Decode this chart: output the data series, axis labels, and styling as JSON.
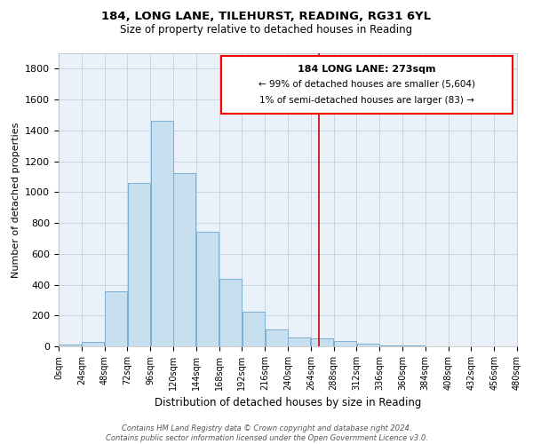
{
  "title": "184, LONG LANE, TILEHURST, READING, RG31 6YL",
  "subtitle": "Size of property relative to detached houses in Reading",
  "xlabel": "Distribution of detached houses by size in Reading",
  "ylabel": "Number of detached properties",
  "bar_color": "#c8dff0",
  "bar_edge_color": "#7bafd4",
  "background_color": "#ffffff",
  "ax_background_color": "#eaf1f8",
  "grid_color": "#c5d5e5",
  "vline_x": 273,
  "vline_color": "#cc0000",
  "bin_width": 24,
  "bin_starts": [
    0,
    24,
    48,
    72,
    96,
    120,
    144,
    168,
    192,
    216,
    240,
    264,
    288,
    312,
    336,
    360,
    384,
    408,
    432,
    456
  ],
  "bar_heights": [
    12,
    28,
    355,
    1060,
    1460,
    1120,
    740,
    440,
    225,
    110,
    55,
    50,
    32,
    18,
    8,
    3,
    1,
    0,
    0,
    0
  ],
  "ylim": [
    0,
    1900
  ],
  "xlim": [
    0,
    480
  ],
  "xtick_positions": [
    0,
    24,
    48,
    72,
    96,
    120,
    144,
    168,
    192,
    216,
    240,
    264,
    288,
    312,
    336,
    360,
    384,
    408,
    432,
    456,
    480
  ],
  "xtick_labels": [
    "0sqm",
    "24sqm",
    "48sqm",
    "72sqm",
    "96sqm",
    "120sqm",
    "144sqm",
    "168sqm",
    "192sqm",
    "216sqm",
    "240sqm",
    "264sqm",
    "288sqm",
    "312sqm",
    "336sqm",
    "360sqm",
    "384sqm",
    "408sqm",
    "432sqm",
    "456sqm",
    "480sqm"
  ],
  "ytick_positions": [
    0,
    200,
    400,
    600,
    800,
    1000,
    1200,
    1400,
    1600,
    1800
  ],
  "annotation_text_line1": "184 LONG LANE: 273sqm",
  "annotation_text_line2": "← 99% of detached houses are smaller (5,604)",
  "annotation_text_line3": "1% of semi-detached houses are larger (83) →",
  "footer_line1": "Contains HM Land Registry data © Crown copyright and database right 2024.",
  "footer_line2": "Contains public sector information licensed under the Open Government Licence v3.0."
}
